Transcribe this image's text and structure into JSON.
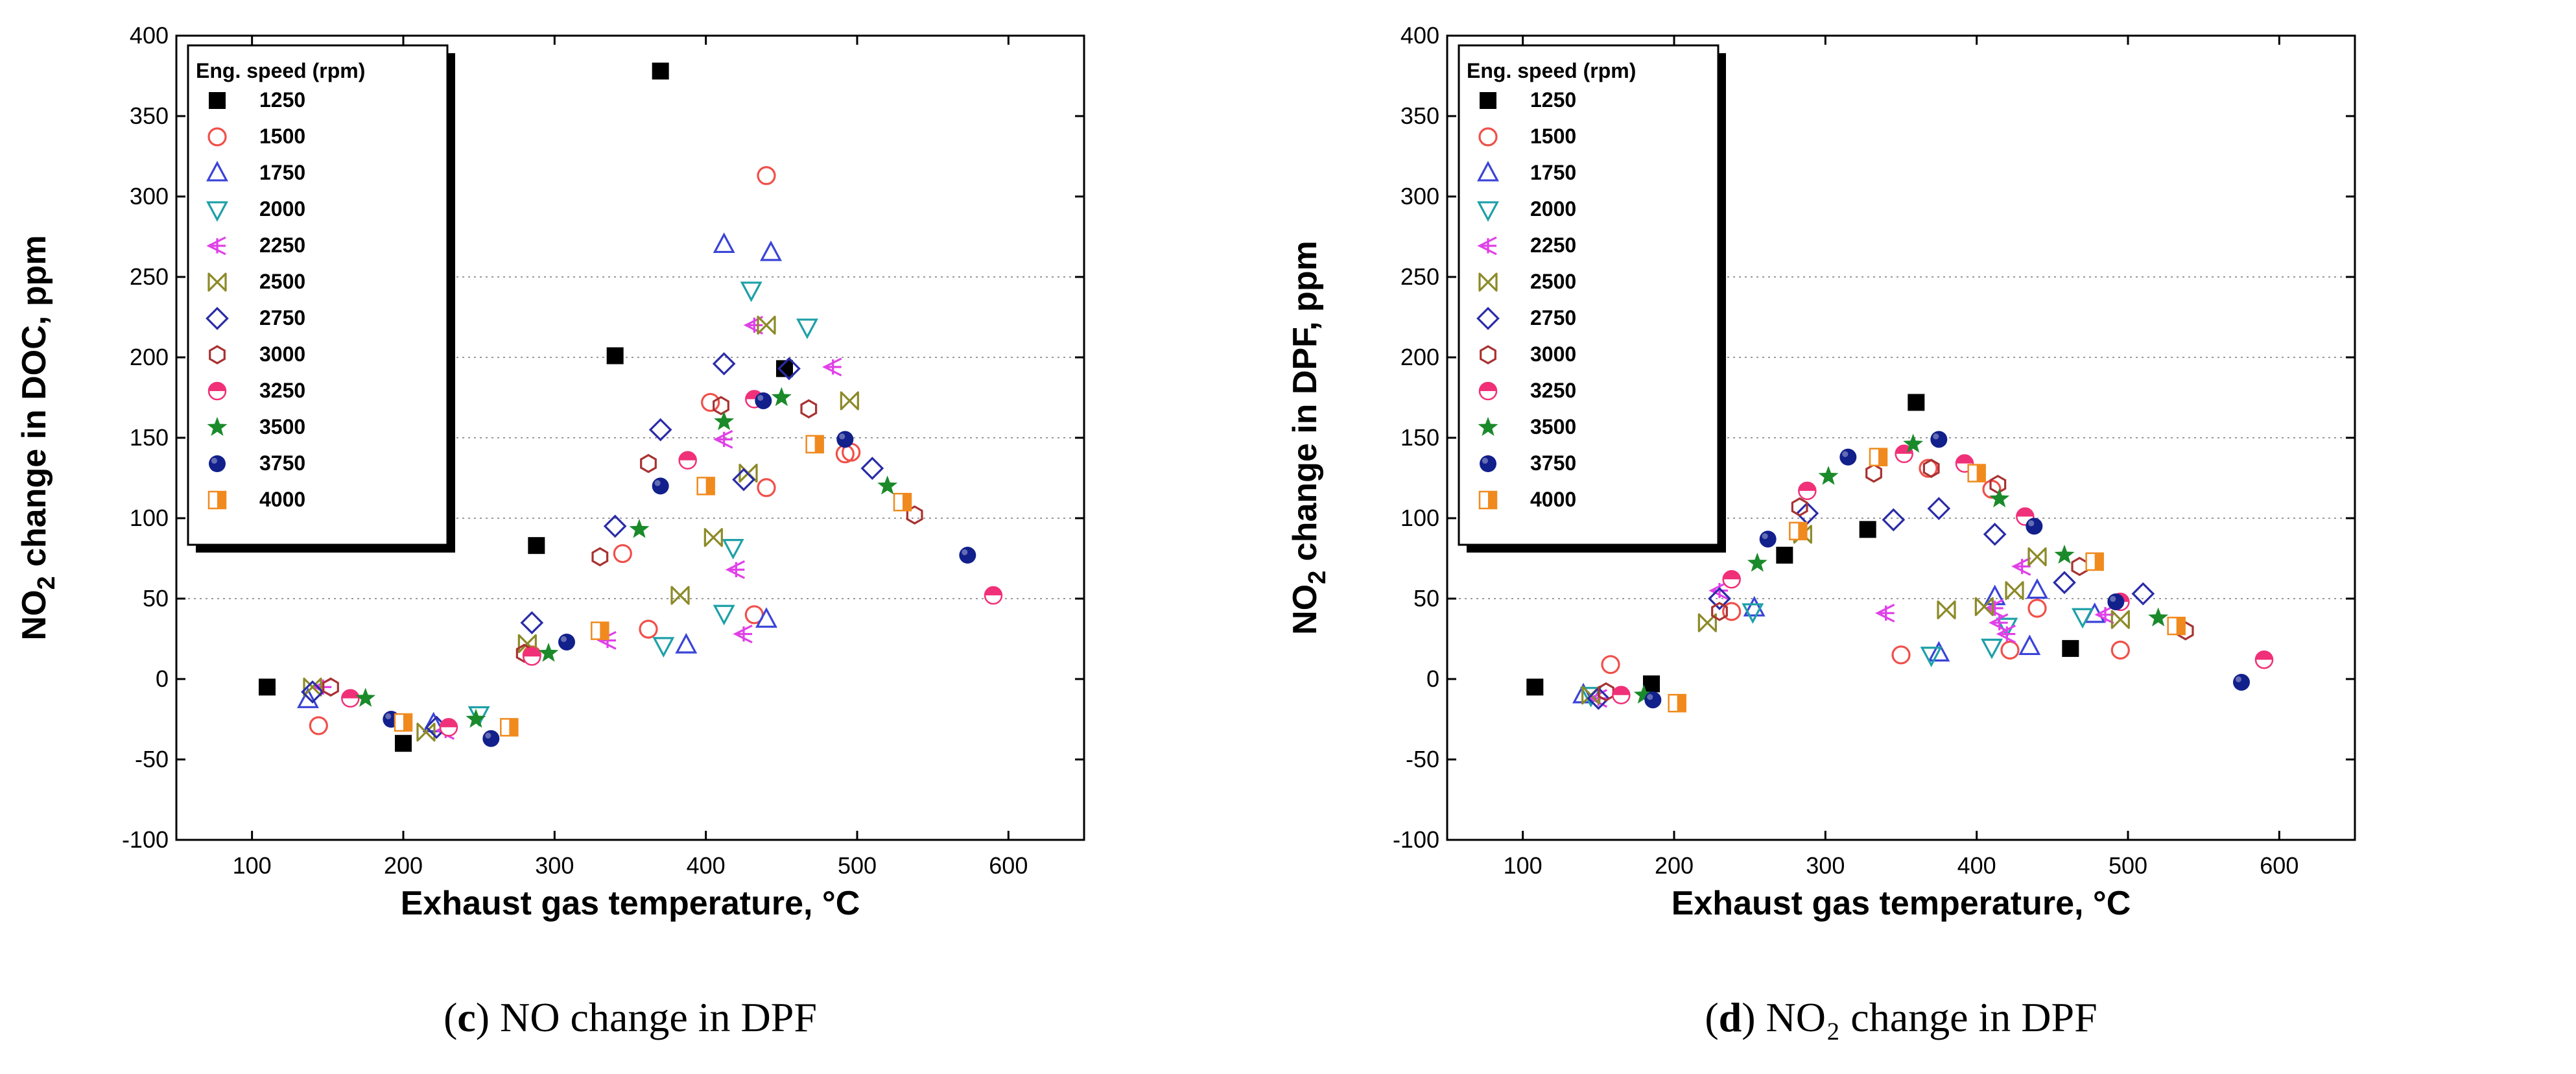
{
  "chart_data": [
    {
      "type": "scatter",
      "panel": "c",
      "ylabel_pre": "NO",
      "ylabel_sub": "2",
      "ylabel_post": " change in DOC, ppm",
      "xlabel": "Exhaust gas temperature, °C",
      "xlim": [
        50,
        650
      ],
      "ylim": [
        -100,
        400
      ],
      "xticks": [
        100,
        200,
        300,
        400,
        500,
        600
      ],
      "yticks": [
        -100,
        -50,
        0,
        50,
        100,
        150,
        200,
        250,
        300,
        350,
        400
      ],
      "grid_y": [
        50,
        100,
        150,
        200,
        250
      ],
      "caption_letter": "c",
      "caption_text": " NO change in DPF",
      "legend_title": "Eng. speed (rpm)",
      "series": [
        {
          "name": "1250",
          "marker": "square-filled",
          "color": "#000000",
          "points": [
            [
              110,
              -5
            ],
            [
              200,
              -40
            ],
            [
              288,
              83
            ],
            [
              340,
              201
            ],
            [
              370,
              378
            ],
            [
              452,
              193
            ]
          ]
        },
        {
          "name": "1500",
          "marker": "circle-open",
          "color": "#f0504a",
          "points": [
            [
              144,
              -29
            ],
            [
              285,
              15
            ],
            [
              345,
              78
            ],
            [
              362,
              31
            ],
            [
              403,
              172
            ],
            [
              432,
              40
            ],
            [
              440,
              313
            ],
            [
              440,
              119
            ],
            [
              492,
              140
            ],
            [
              496,
              141
            ]
          ]
        },
        {
          "name": "1750",
          "marker": "triangle-up-open",
          "color": "#3a44d8",
          "points": [
            [
              137,
              -13
            ],
            [
              220,
              -28
            ],
            [
              387,
              21
            ],
            [
              412,
              270
            ],
            [
              440,
              37
            ],
            [
              443,
              265
            ]
          ]
        },
        {
          "name": "2000",
          "marker": "triangle-down-open",
          "color": "#1ea0a8",
          "points": [
            [
              250,
              -22
            ],
            [
              372,
              21
            ],
            [
              412,
              41
            ],
            [
              418,
              82
            ],
            [
              430,
              242
            ],
            [
              467,
              219
            ]
          ]
        },
        {
          "name": "2250",
          "marker": "tri-left-open",
          "color": "#e040e8",
          "points": [
            [
              147,
              -5
            ],
            [
              228,
              -32
            ],
            [
              335,
              24
            ],
            [
              412,
              149
            ],
            [
              420,
              68
            ],
            [
              425,
              28
            ],
            [
              432,
              220
            ],
            [
              484,
              194
            ]
          ]
        },
        {
          "name": "2500",
          "marker": "bowtie-open",
          "color": "#8c8a28",
          "points": [
            [
              140,
              -5
            ],
            [
              215,
              -33
            ],
            [
              282,
              22
            ],
            [
              383,
              52
            ],
            [
              405,
              88
            ],
            [
              428,
              128
            ],
            [
              440,
              220
            ],
            [
              495,
              173
            ]
          ]
        },
        {
          "name": "2750",
          "marker": "diamond-open",
          "color": "#2a2ca8",
          "points": [
            [
              140,
              -8
            ],
            [
              222,
              -30
            ],
            [
              285,
              35
            ],
            [
              340,
              95
            ],
            [
              370,
              155
            ],
            [
              412,
              196
            ],
            [
              425,
              124
            ],
            [
              455,
              193
            ],
            [
              510,
              131
            ]
          ]
        },
        {
          "name": "3000",
          "marker": "hexagon-open",
          "color": "#a83232",
          "points": [
            [
              152,
              -5
            ],
            [
              280,
              16
            ],
            [
              330,
              76
            ],
            [
              362,
              134
            ],
            [
              410,
              170
            ],
            [
              468,
              168
            ],
            [
              538,
              102
            ]
          ]
        },
        {
          "name": "3250",
          "marker": "circle-half",
          "color": "#f03078",
          "points": [
            [
              165,
              -12
            ],
            [
              230,
              -30
            ],
            [
              285,
              14
            ],
            [
              388,
              136
            ],
            [
              432,
              174
            ],
            [
              590,
              52
            ]
          ]
        },
        {
          "name": "3500",
          "marker": "star-filled",
          "color": "#1a8a2a",
          "points": [
            [
              175,
              -12
            ],
            [
              248,
              -25
            ],
            [
              296,
              16
            ],
            [
              356,
              93
            ],
            [
              412,
              160
            ],
            [
              450,
              175
            ],
            [
              520,
              120
            ]
          ]
        },
        {
          "name": "3750",
          "marker": "circle-filled",
          "color": "#12208c",
          "points": [
            [
              192,
              -25
            ],
            [
              258,
              -37
            ],
            [
              308,
              23
            ],
            [
              370,
              120
            ],
            [
              438,
              173
            ],
            [
              492,
              149
            ],
            [
              573,
              77
            ]
          ]
        },
        {
          "name": "4000",
          "marker": "square-half",
          "color": "#f08a1e",
          "points": [
            [
              200,
              -27
            ],
            [
              270,
              -30
            ],
            [
              330,
              30
            ],
            [
              400,
              120
            ],
            [
              472,
              146
            ],
            [
              530,
              110
            ]
          ]
        }
      ]
    },
    {
      "type": "scatter",
      "panel": "d",
      "ylabel_pre": "NO",
      "ylabel_sub": "2",
      "ylabel_post": " change in DPF, ppm",
      "xlabel": "Exhaust gas temperature, °C",
      "xlim": [
        50,
        650
      ],
      "ylim": [
        -100,
        400
      ],
      "xticks": [
        100,
        200,
        300,
        400,
        500,
        600
      ],
      "yticks": [
        -100,
        -50,
        0,
        50,
        100,
        150,
        200,
        250,
        300,
        350,
        400
      ],
      "grid_y": [
        50,
        100,
        150,
        200,
        250
      ],
      "caption_letter": "d",
      "caption_text": " NO₂ change in DPF",
      "legend_title": "Eng. speed (rpm)",
      "series": [
        {
          "name": "1250",
          "marker": "square-filled",
          "color": "#000000",
          "points": [
            [
              108,
              -5
            ],
            [
              185,
              -3
            ],
            [
              273,
              77
            ],
            [
              328,
              93
            ],
            [
              360,
              172
            ],
            [
              462,
              19
            ]
          ]
        },
        {
          "name": "1500",
          "marker": "circle-open",
          "color": "#f0504a",
          "points": [
            [
              158,
              9
            ],
            [
              238,
              42
            ],
            [
              350,
              15
            ],
            [
              368,
              131
            ],
            [
              410,
              118
            ],
            [
              422,
              18
            ],
            [
              440,
              44
            ],
            [
              495,
              18
            ]
          ]
        },
        {
          "name": "1750",
          "marker": "triangle-up-open",
          "color": "#3a44d8",
          "points": [
            [
              140,
              -10
            ],
            [
              253,
              44
            ],
            [
              375,
              16
            ],
            [
              412,
              51
            ],
            [
              435,
              20
            ],
            [
              440,
              55
            ],
            [
              478,
              40
            ]
          ]
        },
        {
          "name": "2000",
          "marker": "triangle-down-open",
          "color": "#1ea0a8",
          "points": [
            [
              145,
              -10
            ],
            [
              252,
              42
            ],
            [
              370,
              15
            ],
            [
              410,
              20
            ],
            [
              420,
              33
            ],
            [
              470,
              39
            ]
          ]
        },
        {
          "name": "2250",
          "marker": "tri-left-open",
          "color": "#e040e8",
          "points": [
            [
              150,
              -12
            ],
            [
              230,
              55
            ],
            [
              340,
              41
            ],
            [
              412,
              44
            ],
            [
              415,
              35
            ],
            [
              420,
              28
            ],
            [
              430,
              70
            ],
            [
              485,
              40
            ]
          ]
        },
        {
          "name": "2500",
          "marker": "bowtie-open",
          "color": "#8c8a28",
          "points": [
            [
              145,
              -10
            ],
            [
              222,
              35
            ],
            [
              285,
              90
            ],
            [
              380,
              43
            ],
            [
              405,
              45
            ],
            [
              425,
              55
            ],
            [
              440,
              76
            ],
            [
              495,
              37
            ]
          ]
        },
        {
          "name": "2750",
          "marker": "diamond-open",
          "color": "#2a2ca8",
          "points": [
            [
              150,
              -12
            ],
            [
              230,
              50
            ],
            [
              288,
              103
            ],
            [
              345,
              99
            ],
            [
              375,
              106
            ],
            [
              412,
              90
            ],
            [
              458,
              60
            ],
            [
              510,
              53
            ]
          ]
        },
        {
          "name": "3000",
          "marker": "hexagon-open",
          "color": "#a83232",
          "points": [
            [
              155,
              -8
            ],
            [
              230,
              42
            ],
            [
              283,
              107
            ],
            [
              332,
              128
            ],
            [
              370,
              131
            ],
            [
              414,
              121
            ],
            [
              468,
              70
            ],
            [
              538,
              30
            ]
          ]
        },
        {
          "name": "3250",
          "marker": "circle-half",
          "color": "#f03078",
          "points": [
            [
              165,
              -10
            ],
            [
              238,
              62
            ],
            [
              288,
              117
            ],
            [
              352,
              140
            ],
            [
              392,
              134
            ],
            [
              432,
              101
            ],
            [
              495,
              48
            ],
            [
              590,
              12
            ]
          ]
        },
        {
          "name": "3500",
          "marker": "star-filled",
          "color": "#1a8a2a",
          "points": [
            [
              180,
              -10
            ],
            [
              255,
              72
            ],
            [
              302,
              126
            ],
            [
              358,
              146
            ],
            [
              415,
              112
            ],
            [
              458,
              77
            ],
            [
              520,
              38
            ]
          ]
        },
        {
          "name": "3750",
          "marker": "circle-filled",
          "color": "#12208c",
          "points": [
            [
              186,
              -13
            ],
            [
              262,
              87
            ],
            [
              315,
              138
            ],
            [
              375,
              149
            ],
            [
              438,
              95
            ],
            [
              492,
              48
            ],
            [
              575,
              -2
            ]
          ]
        },
        {
          "name": "4000",
          "marker": "square-half",
          "color": "#f08a1e",
          "points": [
            [
              202,
              -15
            ],
            [
              282,
              92
            ],
            [
              335,
              138
            ],
            [
              400,
              128
            ],
            [
              478,
              73
            ],
            [
              532,
              33
            ]
          ]
        }
      ]
    }
  ]
}
